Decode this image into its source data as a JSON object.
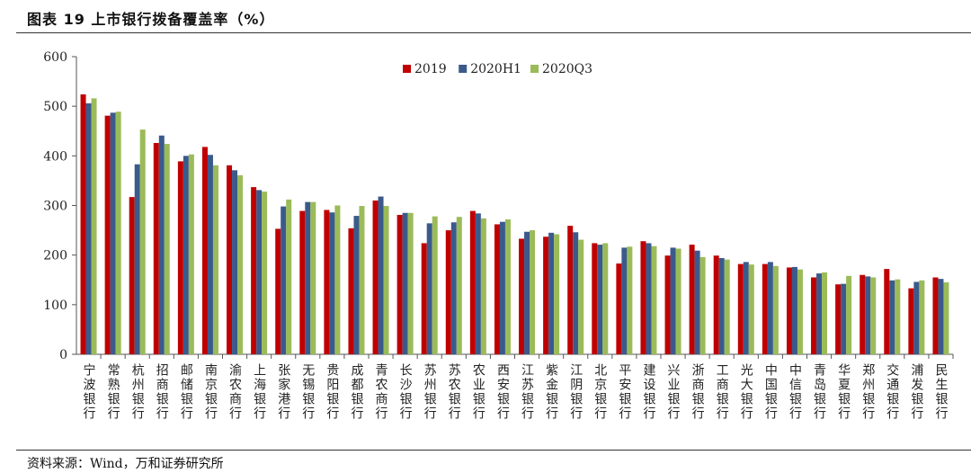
{
  "header": {
    "title": "图表 19   上市银行拨备覆盖率（%）"
  },
  "footer": {
    "source": "资料来源：Wind，万和证券研究所"
  },
  "colors": {
    "s2019": "#c00000",
    "s2020H1": "#3b5a8c",
    "s2020Q3": "#9bbb59"
  },
  "chart_data": {
    "type": "bar",
    "title": "上市银行拨备覆盖率（%）",
    "xlabel": "",
    "ylabel": "",
    "ylim": [
      0,
      600
    ],
    "yticks": [
      0,
      100,
      200,
      300,
      400,
      500,
      600
    ],
    "legend_position": "top-center",
    "grid": false,
    "categories": [
      "宁波银行",
      "常熟银行",
      "杭州银行",
      "招商银行",
      "邮储银行",
      "南京银行",
      "渝农商行",
      "上海银行",
      "张家港行",
      "无锡银行",
      "贵阳银行",
      "成都银行",
      "青农商行",
      "长沙银行",
      "苏州银行",
      "苏农银行",
      "农业银行",
      "西安银行",
      "江苏银行",
      "紫金银行",
      "江阴银行",
      "北京银行",
      "平安银行",
      "建设银行",
      "兴业银行",
      "浙商银行",
      "工商银行",
      "光大银行",
      "中国银行",
      "中信银行",
      "青岛银行",
      "华夏银行",
      "郑州银行",
      "交通银行",
      "浦发银行",
      "民生银行"
    ],
    "series": [
      {
        "name": "2019",
        "values": [
          524,
          481,
          317,
          426,
          389,
          418,
          381,
          337,
          253,
          289,
          291,
          254,
          310,
          281,
          224,
          250,
          289,
          262,
          233,
          237,
          259,
          224,
          183,
          228,
          199,
          221,
          199,
          182,
          182,
          175,
          155,
          141,
          160,
          172,
          133,
          155
        ]
      },
      {
        "name": "2020H1",
        "values": [
          506,
          487,
          383,
          441,
          400,
          402,
          371,
          331,
          298,
          307,
          286,
          279,
          318,
          285,
          264,
          266,
          284,
          267,
          247,
          245,
          246,
          221,
          215,
          224,
          215,
          209,
          194,
          186,
          186,
          176,
          163,
          142,
          157,
          149,
          146,
          152
        ]
      },
      {
        "name": "2020Q3",
        "values": [
          516,
          489,
          453,
          424,
          403,
          381,
          361,
          328,
          312,
          307,
          300,
          299,
          299,
          285,
          278,
          277,
          274,
          272,
          250,
          242,
          231,
          224,
          217,
          218,
          213,
          196,
          191,
          181,
          178,
          171,
          165,
          158,
          155,
          151,
          149,
          145
        ]
      }
    ]
  }
}
